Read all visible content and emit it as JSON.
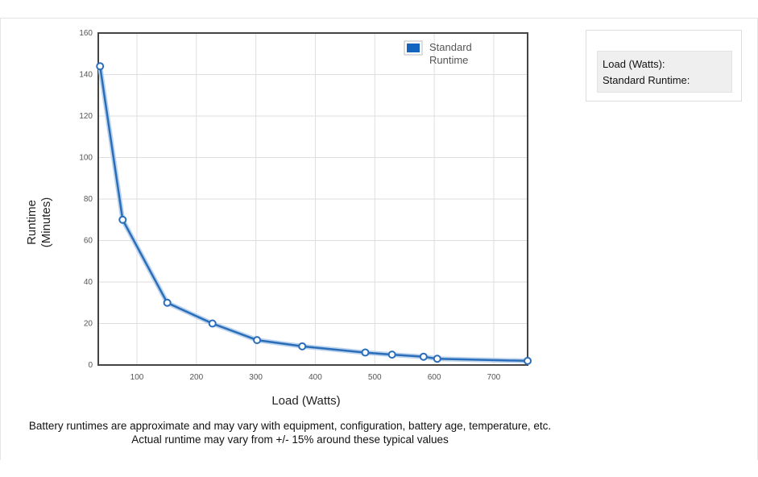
{
  "chart_data": {
    "type": "line",
    "xlabel": "Load (Watts)",
    "ylabel_lines": [
      "Runtime",
      "(Minutes)"
    ],
    "xlim": [
      35,
      757
    ],
    "ylim": [
      0,
      160
    ],
    "x_ticks": [
      100,
      200,
      300,
      400,
      500,
      600,
      700
    ],
    "y_ticks": [
      0,
      20,
      40,
      60,
      80,
      100,
      120,
      140,
      160
    ],
    "grid": true,
    "legend_position": "top-right",
    "legend_lines": [
      "Standard",
      "Runtime"
    ],
    "series": [
      {
        "x": [
          38,
          76,
          151,
          227,
          302,
          378,
          484,
          529,
          582,
          605,
          757
        ],
        "y": [
          144,
          70,
          30,
          20,
          12,
          9,
          6,
          5,
          4,
          3,
          2
        ],
        "color": "#2a6ebb"
      }
    ]
  },
  "info_panel": {
    "load_label": "Load (Watts):",
    "runtime_label": "Standard Runtime:"
  },
  "notes": {
    "line1": "Battery runtimes are approximate and may vary with equipment, configuration, battery age, temperature, etc.",
    "line2": "Actual runtime may vary from +/- 15% around these typical values"
  }
}
